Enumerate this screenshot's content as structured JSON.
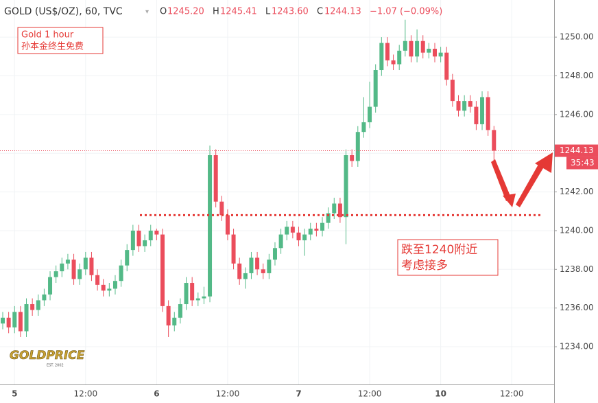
{
  "chart_data": {
    "type": "candlestick",
    "header": {
      "symbol": "GOLD (US$/OZ), 60, TVC",
      "o_label": "O",
      "open": "1245.20",
      "h_label": "H",
      "high": "1245.41",
      "l_label": "L",
      "low": "1243.60",
      "c_label": "C",
      "close": "1244.13",
      "change": "−1.07 (−0.09%)"
    },
    "annotations": {
      "box1_line1": "Gold 1 hour",
      "box1_line2": "孙本金终生免费",
      "box2_line1": "跌至1240附近",
      "box2_line2": "考虑接多",
      "support_level": 1240.8
    },
    "logo": {
      "name": "GOLDPRICE",
      "est": "EST. 2002"
    },
    "last_price_label": "1244.13",
    "countdown": "35:43",
    "up_color": "#53b987",
    "down_color": "#eb4d5c",
    "grid": true,
    "ylim": [
      1232.05,
      1251.92
    ],
    "yticks": [
      {
        "value": 1234,
        "label": "1234.00"
      },
      {
        "value": 1236,
        "label": "1236.00"
      },
      {
        "value": 1238,
        "label": "1238.00"
      },
      {
        "value": 1240,
        "label": "1240.00"
      },
      {
        "value": 1242,
        "label": "1242.00"
      },
      {
        "value": 1244,
        "label": "1244.00"
      },
      {
        "value": 1246,
        "label": "1246.00"
      },
      {
        "value": 1248,
        "label": "1248.00"
      },
      {
        "value": 1250,
        "label": "1250.00"
      }
    ],
    "categories": [
      null,
      null,
      "5",
      null,
      null,
      null,
      null,
      null,
      null,
      null,
      null,
      null,
      null,
      null,
      "12:00",
      null,
      null,
      null,
      null,
      null,
      null,
      null,
      null,
      null,
      null,
      null,
      "6",
      null,
      null,
      null,
      null,
      null,
      null,
      null,
      null,
      null,
      null,
      null,
      "12:00",
      null,
      null,
      null,
      null,
      null,
      null,
      null,
      null,
      null,
      null,
      null,
      "7",
      null,
      null,
      null,
      null,
      null,
      null,
      null,
      null,
      null,
      null,
      null,
      "12:00",
      null,
      null,
      null,
      null,
      null,
      null,
      null,
      null,
      null,
      null,
      null,
      "10",
      null,
      null,
      null,
      null,
      null,
      null,
      null,
      null,
      null,
      null,
      null,
      "12:00",
      null,
      null,
      null,
      null,
      null,
      null,
      null
    ],
    "open": [
      1235.2,
      1235.5,
      1235.0,
      1235.8,
      1234.8,
      1236.2,
      1235.9,
      1236.4,
      1236.7,
      1237.6,
      1237.9,
      1238.3,
      1238.5,
      1237.5,
      1238.0,
      1238.6,
      1237.7,
      1237.2,
      1236.9,
      1237.0,
      1237.4,
      1238.2,
      1239.0,
      1240.0,
      1239.2,
      1239.5,
      1240.0,
      1239.8,
      1236.1,
      1235.1,
      1235.5,
      1236.2,
      1237.3,
      1236.4,
      1236.5,
      1236.6,
      1243.9,
      1241.5,
      1240.8,
      1239.8,
      1238.3,
      1237.5,
      1237.8,
      1238.6,
      1238.0,
      1237.8,
      1238.5,
      1239.1,
      1239.8,
      1240.2,
      1239.9,
      1239.5,
      1239.8,
      1240.1,
      1240.0,
      1240.4,
      1240.9,
      1241.4,
      1240.7,
      1243.9,
      1243.6,
      1245.1,
      1245.6,
      1246.4,
      1248.3,
      1249.7,
      1248.8,
      1248.6,
      1249.3,
      1249.8,
      1249.0,
      1249.8,
      1249.2,
      1249.4,
      1249.0,
      1249.2,
      1247.8,
      1246.7,
      1246.2,
      1246.7,
      1246.4,
      1245.5,
      1246.9,
      1245.2,
      null,
      null,
      null,
      null,
      null,
      null,
      null,
      null,
      null,
      null
    ],
    "high": [
      1235.8,
      1235.8,
      1236.1,
      1236.1,
      1236.5,
      1236.5,
      1236.7,
      1237.0,
      1237.9,
      1238.2,
      1238.6,
      1238.8,
      1238.8,
      1238.3,
      1238.9,
      1238.9,
      1238.0,
      1237.5,
      1237.3,
      1237.7,
      1238.5,
      1239.3,
      1240.3,
      1240.3,
      1239.8,
      1240.3,
      1240.1,
      1240.1,
      1236.4,
      1235.8,
      1236.5,
      1237.6,
      1237.6,
      1236.8,
      1237.1,
      1244.4,
      1244.2,
      1241.8,
      1241.1,
      1240.1,
      1238.6,
      1238.1,
      1238.9,
      1238.9,
      1238.3,
      1238.8,
      1239.4,
      1240.1,
      1240.5,
      1240.5,
      1240.2,
      1240.1,
      1240.4,
      1240.4,
      1240.7,
      1241.2,
      1241.7,
      1241.7,
      1244.2,
      1244.2,
      1245.4,
      1246.9,
      1247.7,
      1248.6,
      1250.0,
      1250.0,
      1249.1,
      1249.6,
      1250.9,
      1250.1,
      1250.4,
      1250.1,
      1249.7,
      1249.7,
      1249.5,
      1249.5,
      1248.1,
      1247.0,
      1247.0,
      1247.0,
      1246.7,
      1247.2,
      1247.2,
      1245.41,
      null,
      null,
      null,
      null,
      null,
      null,
      null,
      null,
      null,
      null
    ],
    "low": [
      1234.9,
      1234.7,
      1234.7,
      1234.5,
      1234.5,
      1235.6,
      1235.6,
      1236.1,
      1236.4,
      1237.3,
      1237.6,
      1238.0,
      1237.2,
      1237.2,
      1237.7,
      1237.4,
      1236.9,
      1236.6,
      1236.6,
      1236.7,
      1237.1,
      1237.9,
      1238.7,
      1238.9,
      1238.9,
      1239.2,
      1239.5,
      1235.8,
      1234.5,
      1234.8,
      1235.2,
      1235.9,
      1236.1,
      1236.1,
      1236.2,
      1236.3,
      1241.2,
      1240.5,
      1239.5,
      1238.0,
      1237.2,
      1237.0,
      1237.5,
      1237.7,
      1237.5,
      1237.5,
      1238.2,
      1238.8,
      1239.5,
      1239.6,
      1239.2,
      1238.7,
      1239.5,
      1239.7,
      1239.7,
      1240.1,
      1240.6,
      1240.4,
      1239.3,
      1243.3,
      1243.3,
      1244.8,
      1245.3,
      1246.1,
      1248.0,
      1248.5,
      1248.3,
      1248.3,
      1249.0,
      1248.7,
      1248.7,
      1248.9,
      1248.9,
      1248.7,
      1248.7,
      1247.5,
      1246.4,
      1245.9,
      1245.9,
      1246.1,
      1245.2,
      1245.2,
      1244.9,
      1243.6,
      null,
      null,
      null,
      null,
      null,
      null,
      null,
      null,
      null,
      null
    ],
    "close": [
      1235.5,
      1235.0,
      1235.8,
      1234.8,
      1236.2,
      1235.9,
      1236.4,
      1236.7,
      1237.6,
      1237.9,
      1238.3,
      1238.5,
      1237.5,
      1238.0,
      1238.6,
      1237.7,
      1237.2,
      1236.9,
      1237.0,
      1237.4,
      1238.2,
      1239.0,
      1240.0,
      1239.2,
      1239.5,
      1240.0,
      1239.8,
      1236.1,
      1235.1,
      1235.5,
      1236.2,
      1237.3,
      1236.4,
      1236.5,
      1236.6,
      1243.9,
      1241.5,
      1240.8,
      1239.8,
      1238.3,
      1237.5,
      1237.8,
      1238.6,
      1238.0,
      1237.8,
      1238.5,
      1239.1,
      1239.8,
      1240.2,
      1239.9,
      1239.5,
      1239.8,
      1240.1,
      1240.0,
      1240.4,
      1240.9,
      1241.4,
      1240.7,
      1243.9,
      1243.6,
      1245.1,
      1245.6,
      1246.4,
      1248.3,
      1249.7,
      1248.8,
      1248.6,
      1249.3,
      1249.8,
      1249.0,
      1249.8,
      1249.2,
      1249.4,
      1249.0,
      1249.2,
      1247.8,
      1246.7,
      1246.2,
      1246.7,
      1246.4,
      1245.5,
      1246.9,
      1245.2,
      1244.13,
      null,
      null,
      null,
      null,
      null,
      null,
      null,
      null,
      null,
      null
    ]
  }
}
